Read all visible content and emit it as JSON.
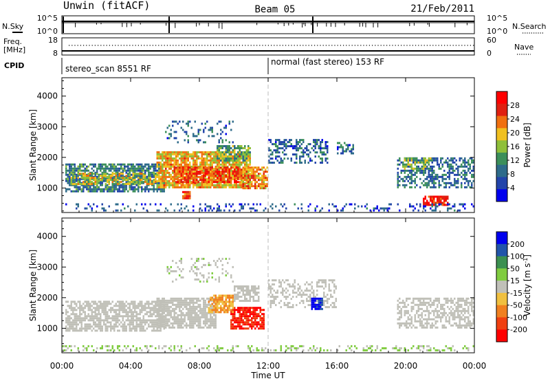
{
  "header": {
    "title": "Unwin (fitACF)",
    "beam": "Beam 05",
    "date": "21/Feb/2011"
  },
  "status_panels": {
    "nsky_label": "N.Sky",
    "nsearch_label": "N.Search",
    "freq_label_line1": "Freq.",
    "freq_label_line2": "[MHz]",
    "nave_label": "Nave",
    "cpid_label": "CPID",
    "nsky_ticks": [
      "10^5",
      "10^0"
    ],
    "nsearch_ticks": [
      "10^5",
      "10^0"
    ],
    "freq_ticks": [
      "18",
      "8"
    ],
    "nave_ticks": [
      "60",
      "0"
    ],
    "cpid_segments": [
      {
        "label": "stereo_scan 8551 RF",
        "start_hour": 0,
        "end_hour": 12
      },
      {
        "label": "normal (fast stereo) 153 RF",
        "start_hour": 12,
        "end_hour": 24
      }
    ]
  },
  "chart_data": [
    {
      "type": "heatmap",
      "panel": "power",
      "xlabel": "Time UT",
      "ylabel": "Slant Range [km]",
      "x_range_hours": [
        0,
        24
      ],
      "x_ticks": [
        "00:00",
        "04:00",
        "08:00",
        "12:00",
        "16:00",
        "20:00",
        "00:00"
      ],
      "ylim": [
        200,
        4600
      ],
      "y_ticks": [
        1000,
        2000,
        3000,
        4000
      ],
      "colorbar": {
        "label": "Power [dB]",
        "ticks": [
          4,
          8,
          12,
          16,
          20,
          24,
          28
        ],
        "range": [
          0,
          32
        ],
        "colors": [
          "#0000ee",
          "#2244aa",
          "#2e6b8a",
          "#3c8f5a",
          "#8fbf3a",
          "#f0c020",
          "#f07010",
          "#e02010",
          "#ff0000"
        ]
      },
      "echo_regions": [
        {
          "t0": 0.2,
          "t1": 6.0,
          "r0": 900,
          "r1": 1800,
          "level": 10,
          "density": 0.75
        },
        {
          "t0": 0.5,
          "t1": 5.5,
          "r0": 1100,
          "r1": 1500,
          "level": 18,
          "density": 0.6
        },
        {
          "t0": 5.5,
          "t1": 11.0,
          "r0": 1000,
          "r1": 2200,
          "level": 20,
          "density": 0.85
        },
        {
          "t0": 6.5,
          "t1": 10.5,
          "r0": 1200,
          "r1": 1700,
          "level": 26,
          "density": 0.7
        },
        {
          "t0": 7.0,
          "t1": 7.5,
          "r0": 650,
          "r1": 900,
          "level": 26,
          "density": 0.9
        },
        {
          "t0": 9.0,
          "t1": 11.0,
          "r0": 1900,
          "r1": 2400,
          "level": 14,
          "density": 0.7
        },
        {
          "t0": 10.5,
          "t1": 12.0,
          "r0": 1000,
          "r1": 1700,
          "level": 22,
          "density": 0.75
        },
        {
          "t0": 6.0,
          "t1": 10.0,
          "r0": 2500,
          "r1": 3200,
          "level": 8,
          "density": 0.18
        },
        {
          "t0": 12.0,
          "t1": 15.5,
          "r0": 1800,
          "r1": 2600,
          "level": 8,
          "density": 0.45
        },
        {
          "t0": 16.0,
          "t1": 17.0,
          "r0": 2100,
          "r1": 2500,
          "level": 8,
          "density": 0.35
        },
        {
          "t0": 19.5,
          "t1": 24.0,
          "r0": 1000,
          "r1": 2000,
          "level": 9,
          "density": 0.5
        },
        {
          "t0": 19.8,
          "t1": 21.5,
          "r0": 1600,
          "r1": 2000,
          "level": 16,
          "density": 0.5
        },
        {
          "t0": 21.0,
          "t1": 22.5,
          "r0": 450,
          "r1": 750,
          "level": 28,
          "density": 0.8
        },
        {
          "t0": 0.0,
          "t1": 24.0,
          "r0": 250,
          "r1": 500,
          "level": 6,
          "density": 0.22
        }
      ]
    },
    {
      "type": "heatmap",
      "panel": "velocity",
      "xlabel": "Time UT",
      "ylabel": "Slant Range [km]",
      "x_range_hours": [
        0,
        24
      ],
      "x_ticks": [
        "00:00",
        "04:00",
        "08:00",
        "12:00",
        "16:00",
        "20:00",
        "00:00"
      ],
      "ylim": [
        200,
        4600
      ],
      "y_ticks": [
        1000,
        2000,
        3000,
        4000
      ],
      "colorbar": {
        "label": "Velocity [m s^-1]",
        "ticks": [
          200,
          100,
          50,
          15,
          -15,
          -50,
          -100,
          -200
        ],
        "range": [
          -250,
          250
        ],
        "colors": [
          "#ff0000",
          "#f04010",
          "#f08020",
          "#f0c040",
          "#c0c0b8",
          "#80cc40",
          "#3c9050",
          "#2255aa",
          "#0000ee"
        ]
      },
      "echo_regions": [
        {
          "t0": 0.2,
          "t1": 6.0,
          "r0": 900,
          "r1": 1900,
          "value": 0,
          "density": 0.7
        },
        {
          "t0": 5.5,
          "t1": 9.0,
          "r0": 1000,
          "r1": 2000,
          "value": 0,
          "density": 0.8
        },
        {
          "t0": 8.5,
          "t1": 10.0,
          "r0": 1500,
          "r1": 2100,
          "value": -80,
          "density": 0.75
        },
        {
          "t0": 9.8,
          "t1": 11.8,
          "r0": 1000,
          "r1": 1700,
          "value": -200,
          "density": 0.8
        },
        {
          "t0": 10.0,
          "t1": 11.5,
          "r0": 1900,
          "r1": 2400,
          "value": 0,
          "density": 0.7
        },
        {
          "t0": 6.0,
          "t1": 10.0,
          "r0": 2500,
          "r1": 3300,
          "value": 20,
          "density": 0.2
        },
        {
          "t0": 12.0,
          "t1": 16.0,
          "r0": 1700,
          "r1": 2600,
          "value": 0,
          "density": 0.4
        },
        {
          "t0": 14.5,
          "t1": 15.2,
          "r0": 1600,
          "r1": 2000,
          "value": 200,
          "density": 0.8
        },
        {
          "t0": 19.5,
          "t1": 24.0,
          "r0": 1000,
          "r1": 2000,
          "value": 0,
          "density": 0.55
        },
        {
          "t0": 0.0,
          "t1": 24.0,
          "r0": 250,
          "r1": 450,
          "value": 30,
          "density": 0.3
        }
      ]
    }
  ]
}
